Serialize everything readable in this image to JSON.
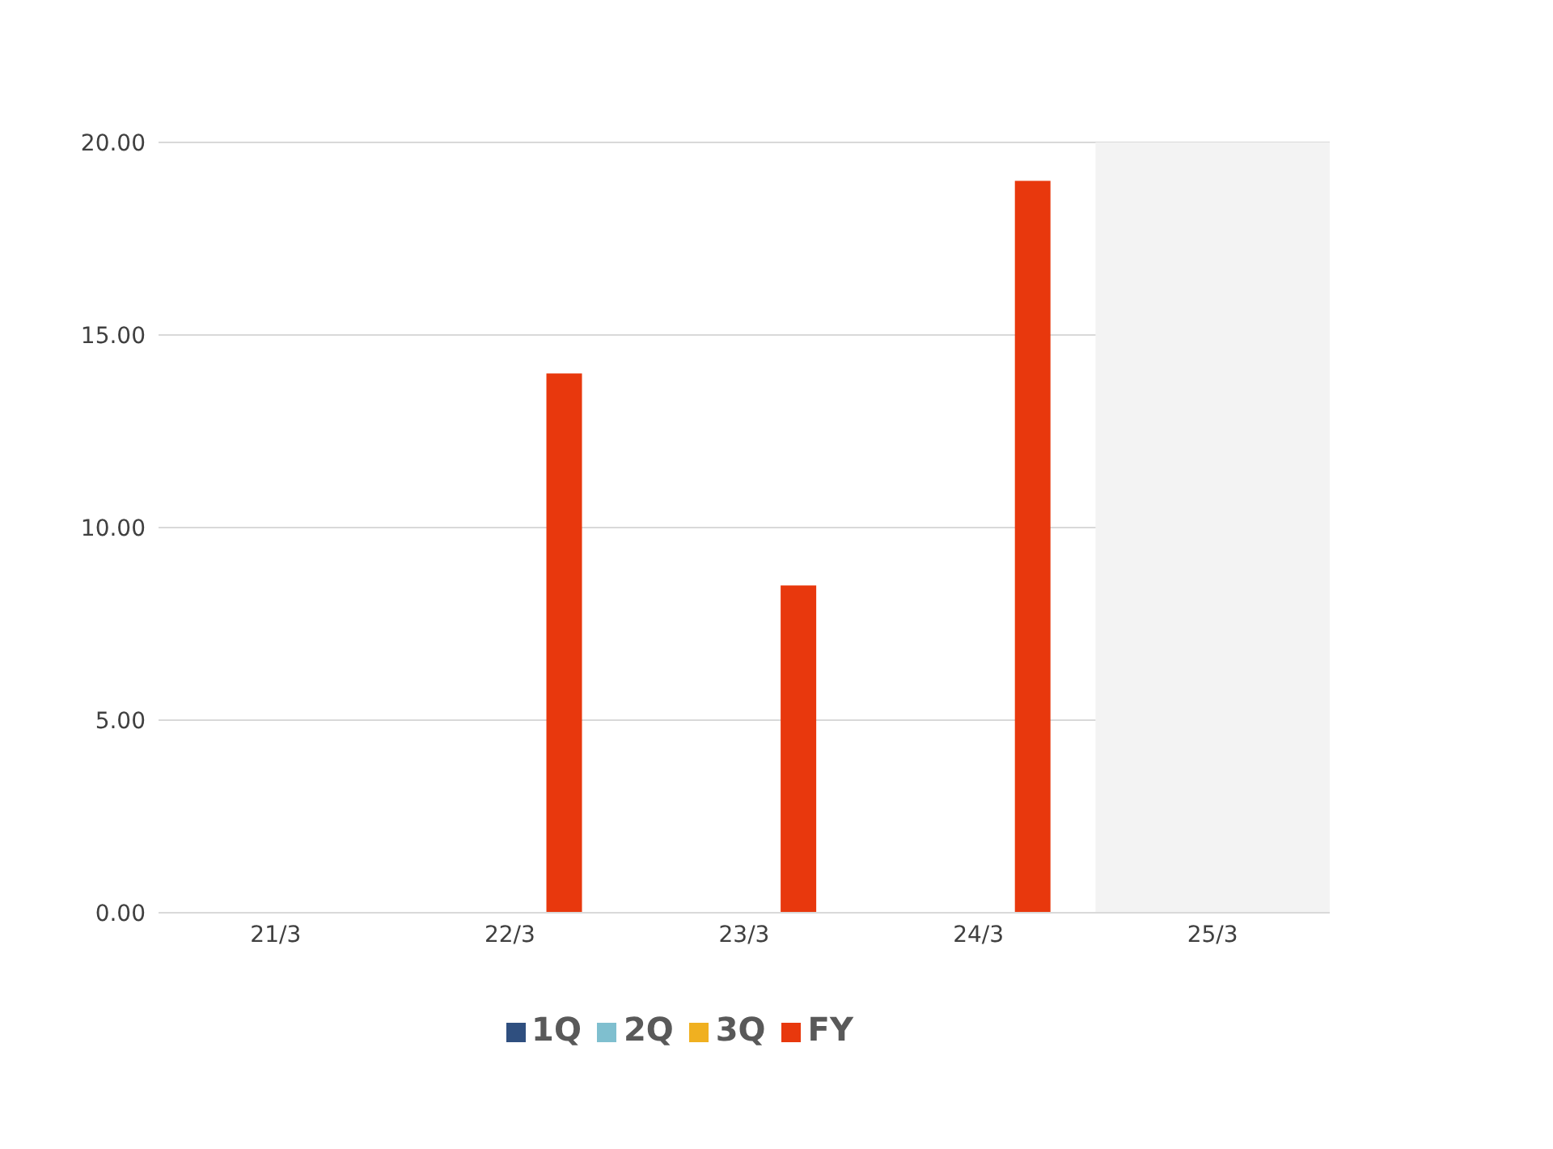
{
  "chart_data": {
    "type": "bar",
    "categories": [
      "21/3",
      "22/3",
      "23/3",
      "24/3",
      "25/3"
    ],
    "series": [
      {
        "name": "1Q",
        "color": "#2f4f7f",
        "values": [
          null,
          null,
          null,
          null,
          null
        ]
      },
      {
        "name": "2Q",
        "color": "#7fbfcf",
        "values": [
          null,
          null,
          null,
          null,
          null
        ]
      },
      {
        "name": "3Q",
        "color": "#f0b020",
        "values": [
          null,
          null,
          null,
          null,
          null
        ]
      },
      {
        "name": "FY",
        "color": "#e8380d",
        "values": [
          null,
          14.0,
          8.5,
          19.0,
          null
        ]
      }
    ],
    "ylim": [
      0,
      20
    ],
    "yticks": [
      {
        "value": 0,
        "label": "0.00"
      },
      {
        "value": 5,
        "label": "5.00"
      },
      {
        "value": 10,
        "label": "10.00"
      },
      {
        "value": 15,
        "label": "15.00"
      },
      {
        "value": 20,
        "label": "20.00"
      }
    ],
    "grid": "y",
    "legend": "bottom",
    "bands": [
      {
        "axis": "x",
        "from": "25/3",
        "to": "25/3",
        "color": "#f3f3f3"
      }
    ]
  }
}
